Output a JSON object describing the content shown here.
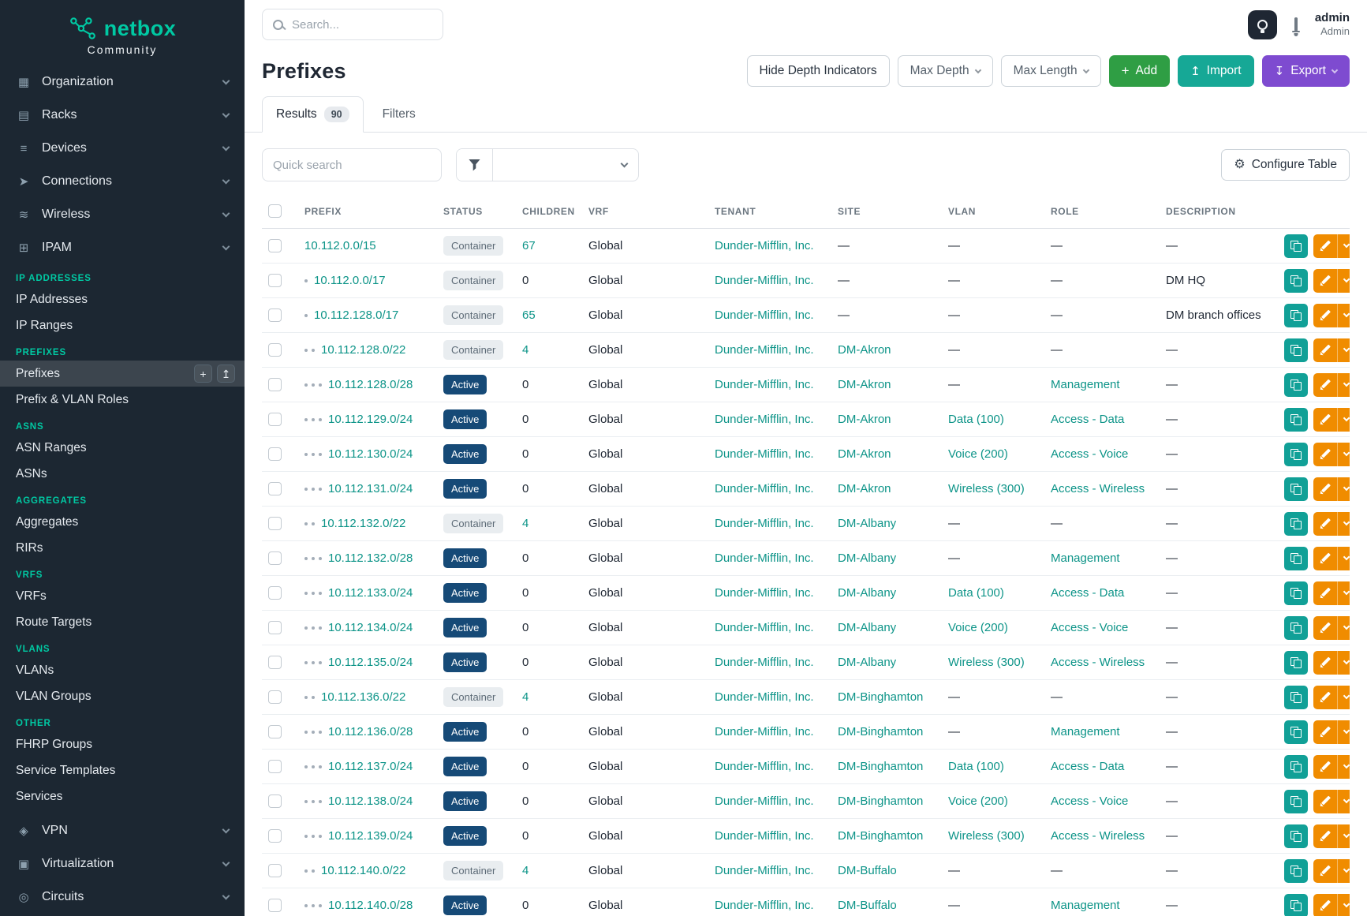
{
  "colors": {
    "sidebar-bg": "#1c2732",
    "accent-teal": "#00c9a3",
    "link": "#0d9488",
    "badge-active-bg": "#164a77",
    "badge-container-bg": "#e9edf0",
    "badge-container-text": "#5d6b77",
    "btn-add": "#2f9e44",
    "btn-import": "#16a896",
    "btn-export": "#7e4bd0",
    "action-copy": "#11a097",
    "action-edit": "#f08c00",
    "text-dark": "#1f2733",
    "text-muted": "#6c757d",
    "border": "#dde1e6"
  },
  "sidebar": {
    "logo": {
      "text": "netbox",
      "subtext": "Community"
    },
    "nav_top": [
      {
        "label": "Organization",
        "icon": "organization-icon"
      },
      {
        "label": "Racks",
        "icon": "racks-icon"
      },
      {
        "label": "Devices",
        "icon": "devices-icon"
      },
      {
        "label": "Connections",
        "icon": "connections-icon"
      },
      {
        "label": "Wireless",
        "icon": "wireless-icon"
      },
      {
        "label": "IPAM",
        "icon": "ipam-icon"
      }
    ],
    "sections": [
      {
        "header": "IP ADDRESSES",
        "items": [
          {
            "label": "IP Addresses"
          },
          {
            "label": "IP Ranges"
          }
        ]
      },
      {
        "header": "PREFIXES",
        "items": [
          {
            "label": "Prefixes",
            "state": "active",
            "active": true
          },
          {
            "label": "Prefix & VLAN Roles"
          }
        ]
      },
      {
        "header": "ASNS",
        "items": [
          {
            "label": "ASN Ranges"
          },
          {
            "label": "ASNs"
          }
        ]
      },
      {
        "header": "AGGREGATES",
        "items": [
          {
            "label": "Aggregates"
          },
          {
            "label": "RIRs"
          }
        ]
      },
      {
        "header": "VRFS",
        "items": [
          {
            "label": "VRFs"
          },
          {
            "label": "Route Targets"
          }
        ]
      },
      {
        "header": "VLANS",
        "items": [
          {
            "label": "VLANs"
          },
          {
            "label": "VLAN Groups"
          }
        ]
      },
      {
        "header": "OTHER",
        "items": [
          {
            "label": "FHRP Groups"
          },
          {
            "label": "Service Templates"
          },
          {
            "label": "Services"
          }
        ]
      }
    ],
    "nav_bottom": [
      {
        "label": "VPN",
        "icon": "vpn-icon"
      },
      {
        "label": "Virtualization",
        "icon": "virtualization-icon"
      },
      {
        "label": "Circuits",
        "icon": "circuits-icon"
      }
    ]
  },
  "topbar": {
    "search_placeholder": "Search...",
    "user": {
      "name": "admin",
      "role": "Admin"
    }
  },
  "page": {
    "title": "Prefixes",
    "buttons": {
      "hide_depth": "Hide Depth Indicators",
      "max_depth": "Max Depth",
      "max_length": "Max Length",
      "add": "Add",
      "import": "Import",
      "export": "Export"
    },
    "tabs": [
      {
        "label": "Results",
        "badge": "90",
        "state": "active"
      },
      {
        "label": "Filters"
      }
    ],
    "toolbar": {
      "quick_search_placeholder": "Quick search",
      "configure_table": "Configure Table"
    }
  },
  "table": {
    "columns": [
      "PREFIX",
      "STATUS",
      "CHILDREN",
      "VRF",
      "TENANT",
      "SITE",
      "VLAN",
      "ROLE",
      "DESCRIPTION"
    ],
    "rows": [
      {
        "depth": 0,
        "prefix": "10.112.0.0/15",
        "status": "Container",
        "children": "67",
        "vrf": "Global",
        "tenant": "Dunder-Mifflin, Inc.",
        "site": "—",
        "vlan": "—",
        "role": "—",
        "description": "—"
      },
      {
        "depth": 1,
        "prefix": "10.112.0.0/17",
        "status": "Container",
        "children": "0",
        "vrf": "Global",
        "tenant": "Dunder-Mifflin, Inc.",
        "site": "—",
        "vlan": "—",
        "role": "—",
        "description": "DM HQ"
      },
      {
        "depth": 1,
        "prefix": "10.112.128.0/17",
        "status": "Container",
        "children": "65",
        "vrf": "Global",
        "tenant": "Dunder-Mifflin, Inc.",
        "site": "—",
        "vlan": "—",
        "role": "—",
        "description": "DM branch offices"
      },
      {
        "depth": 2,
        "prefix": "10.112.128.0/22",
        "status": "Container",
        "children": "4",
        "vrf": "Global",
        "tenant": "Dunder-Mifflin, Inc.",
        "site": "DM-Akron",
        "vlan": "—",
        "role": "—",
        "description": "—"
      },
      {
        "depth": 3,
        "prefix": "10.112.128.0/28",
        "status": "Active",
        "children": "0",
        "vrf": "Global",
        "tenant": "Dunder-Mifflin, Inc.",
        "site": "DM-Akron",
        "vlan": "—",
        "role": "Management",
        "description": "—"
      },
      {
        "depth": 3,
        "prefix": "10.112.129.0/24",
        "status": "Active",
        "children": "0",
        "vrf": "Global",
        "tenant": "Dunder-Mifflin, Inc.",
        "site": "DM-Akron",
        "vlan": "Data (100)",
        "role": "Access - Data",
        "description": "—"
      },
      {
        "depth": 3,
        "prefix": "10.112.130.0/24",
        "status": "Active",
        "children": "0",
        "vrf": "Global",
        "tenant": "Dunder-Mifflin, Inc.",
        "site": "DM-Akron",
        "vlan": "Voice (200)",
        "role": "Access - Voice",
        "description": "—"
      },
      {
        "depth": 3,
        "prefix": "10.112.131.0/24",
        "status": "Active",
        "children": "0",
        "vrf": "Global",
        "tenant": "Dunder-Mifflin, Inc.",
        "site": "DM-Akron",
        "vlan": "Wireless (300)",
        "role": "Access - Wireless",
        "description": "—"
      },
      {
        "depth": 2,
        "prefix": "10.112.132.0/22",
        "status": "Container",
        "children": "4",
        "vrf": "Global",
        "tenant": "Dunder-Mifflin, Inc.",
        "site": "DM-Albany",
        "vlan": "—",
        "role": "—",
        "description": "—"
      },
      {
        "depth": 3,
        "prefix": "10.112.132.0/28",
        "status": "Active",
        "children": "0",
        "vrf": "Global",
        "tenant": "Dunder-Mifflin, Inc.",
        "site": "DM-Albany",
        "vlan": "—",
        "role": "Management",
        "description": "—"
      },
      {
        "depth": 3,
        "prefix": "10.112.133.0/24",
        "status": "Active",
        "children": "0",
        "vrf": "Global",
        "tenant": "Dunder-Mifflin, Inc.",
        "site": "DM-Albany",
        "vlan": "Data (100)",
        "role": "Access - Data",
        "description": "—"
      },
      {
        "depth": 3,
        "prefix": "10.112.134.0/24",
        "status": "Active",
        "children": "0",
        "vrf": "Global",
        "tenant": "Dunder-Mifflin, Inc.",
        "site": "DM-Albany",
        "vlan": "Voice (200)",
        "role": "Access - Voice",
        "description": "—"
      },
      {
        "depth": 3,
        "prefix": "10.112.135.0/24",
        "status": "Active",
        "children": "0",
        "vrf": "Global",
        "tenant": "Dunder-Mifflin, Inc.",
        "site": "DM-Albany",
        "vlan": "Wireless (300)",
        "role": "Access - Wireless",
        "description": "—"
      },
      {
        "depth": 2,
        "prefix": "10.112.136.0/22",
        "status": "Container",
        "children": "4",
        "vrf": "Global",
        "tenant": "Dunder-Mifflin, Inc.",
        "site": "DM-Binghamton",
        "vlan": "—",
        "role": "—",
        "description": "—"
      },
      {
        "depth": 3,
        "prefix": "10.112.136.0/28",
        "status": "Active",
        "children": "0",
        "vrf": "Global",
        "tenant": "Dunder-Mifflin, Inc.",
        "site": "DM-Binghamton",
        "vlan": "—",
        "role": "Management",
        "description": "—"
      },
      {
        "depth": 3,
        "prefix": "10.112.137.0/24",
        "status": "Active",
        "children": "0",
        "vrf": "Global",
        "tenant": "Dunder-Mifflin, Inc.",
        "site": "DM-Binghamton",
        "vlan": "Data (100)",
        "role": "Access - Data",
        "description": "—"
      },
      {
        "depth": 3,
        "prefix": "10.112.138.0/24",
        "status": "Active",
        "children": "0",
        "vrf": "Global",
        "tenant": "Dunder-Mifflin, Inc.",
        "site": "DM-Binghamton",
        "vlan": "Voice (200)",
        "role": "Access - Voice",
        "description": "—"
      },
      {
        "depth": 3,
        "prefix": "10.112.139.0/24",
        "status": "Active",
        "children": "0",
        "vrf": "Global",
        "tenant": "Dunder-Mifflin, Inc.",
        "site": "DM-Binghamton",
        "vlan": "Wireless (300)",
        "role": "Access - Wireless",
        "description": "—"
      },
      {
        "depth": 2,
        "prefix": "10.112.140.0/22",
        "status": "Container",
        "children": "4",
        "vrf": "Global",
        "tenant": "Dunder-Mifflin, Inc.",
        "site": "DM-Buffalo",
        "vlan": "—",
        "role": "—",
        "description": "—"
      },
      {
        "depth": 3,
        "prefix": "10.112.140.0/28",
        "status": "Active",
        "children": "0",
        "vrf": "Global",
        "tenant": "Dunder-Mifflin, Inc.",
        "site": "DM-Buffalo",
        "vlan": "—",
        "role": "Management",
        "description": "—"
      }
    ]
  }
}
